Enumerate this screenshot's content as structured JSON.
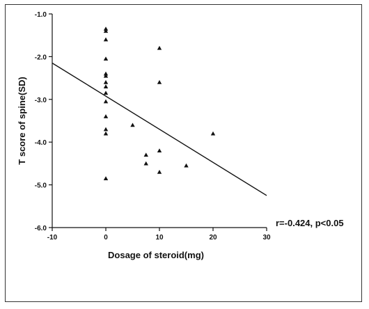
{
  "chart_data": {
    "type": "scatter",
    "xlabel": "Dosage of steroid(mg)",
    "ylabel": "T score of spine(SD)",
    "xlim": [
      -10,
      30
    ],
    "ylim": [
      -6.0,
      -1.0
    ],
    "x_ticks": [
      -10,
      0,
      10,
      20,
      30
    ],
    "y_ticks": [
      -1.0,
      -2.0,
      -3.0,
      -4.0,
      -5.0,
      -6.0
    ],
    "y_tick_labels": [
      "-1.0",
      "-2.0",
      "-3.0",
      "-4.0",
      "-5.0",
      "-6.0"
    ],
    "x_tick_labels": [
      "-10",
      "0",
      "10",
      "20",
      "30"
    ],
    "marker": "triangle",
    "points": [
      {
        "x": 0,
        "y": -1.35
      },
      {
        "x": 0,
        "y": -1.4
      },
      {
        "x": 0,
        "y": -1.6
      },
      {
        "x": 0,
        "y": -2.05
      },
      {
        "x": 0,
        "y": -2.4
      },
      {
        "x": 0,
        "y": -2.45
      },
      {
        "x": 0,
        "y": -2.6
      },
      {
        "x": 0,
        "y": -2.7
      },
      {
        "x": 0,
        "y": -2.85
      },
      {
        "x": 0,
        "y": -3.05
      },
      {
        "x": 0,
        "y": -3.4
      },
      {
        "x": 0,
        "y": -3.7
      },
      {
        "x": 0,
        "y": -3.8
      },
      {
        "x": 0,
        "y": -4.85
      },
      {
        "x": 5,
        "y": -3.6
      },
      {
        "x": 7.5,
        "y": -4.3
      },
      {
        "x": 7.5,
        "y": -4.5
      },
      {
        "x": 10,
        "y": -1.8
      },
      {
        "x": 10,
        "y": -2.6
      },
      {
        "x": 10,
        "y": -4.2
      },
      {
        "x": 10,
        "y": -4.7
      },
      {
        "x": 15,
        "y": -4.55
      },
      {
        "x": 20,
        "y": -3.8
      }
    ],
    "regression_line": {
      "x": [
        -10,
        30
      ],
      "y": [
        -2.15,
        -5.25
      ]
    },
    "annotation": "r=-0.424, p<0.05"
  }
}
